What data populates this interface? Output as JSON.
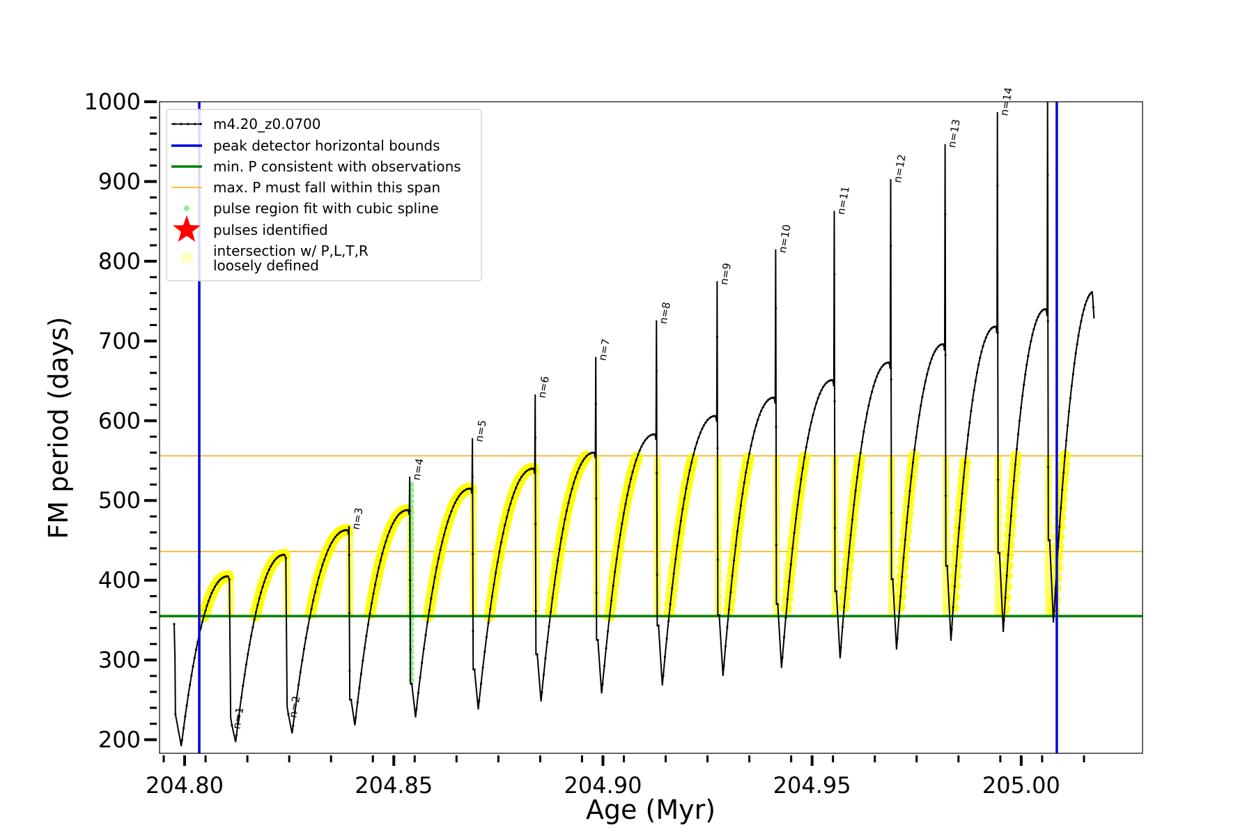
{
  "chart_data": {
    "type": "line",
    "xlabel": "Age (Myr)",
    "ylabel": "FM period (days)",
    "xlim": [
      204.794,
      205.029
    ],
    "ylim": [
      183,
      1000
    ],
    "x_ticks": [
      "204.80",
      "204.85",
      "204.90",
      "204.95",
      "205.00"
    ],
    "x_tick_values": [
      204.8,
      204.85,
      204.9,
      204.95,
      205.0
    ],
    "y_ticks": [
      "200",
      "300",
      "400",
      "500",
      "600",
      "700",
      "800",
      "900",
      "1000"
    ],
    "y_tick_values": [
      200,
      300,
      400,
      500,
      600,
      700,
      800,
      900,
      1000
    ],
    "legend": {
      "placement": "top-left",
      "entries": [
        {
          "label": "m4.20_z0.0700",
          "kind": "line-marker",
          "color": "#000000"
        },
        {
          "label": "peak detector horizontal bounds",
          "kind": "line",
          "color": "#0000dd"
        },
        {
          "label": "min. P consistent with observations",
          "kind": "line",
          "color": "#008000"
        },
        {
          "label": "max. P must fall within this span",
          "kind": "thin-line",
          "color": "#ffa500"
        },
        {
          "label": "pulse region fit with cubic spline",
          "kind": "dot",
          "color": "#90ee90"
        },
        {
          "label": "pulses identified",
          "kind": "star",
          "color": "#ff0000"
        },
        {
          "label": "intersection w/ P,L,T,R",
          "label2": "loosely defined",
          "kind": "dot",
          "color": "#ffffc0"
        }
      ]
    },
    "reference_lines": {
      "peak_bounds_x": [
        204.8035,
        205.0085
      ],
      "min_period": 355,
      "max_period_span": [
        436,
        556
      ]
    },
    "series": {
      "model_name": "m4.20_z0.0700",
      "start": {
        "age": 204.7975,
        "period": 345
      },
      "end_age": 205.018,
      "pulses": [
        {
          "n": 0,
          "age": 204.798,
          "min": 192,
          "after": 193,
          "spike": null,
          "end": 405
        },
        {
          "n": 1,
          "age": 204.811,
          "min": 197,
          "after": 218,
          "spike": null,
          "end": 432
        },
        {
          "n": 2,
          "age": 204.8245,
          "min": 208,
          "after": 232,
          "spike": null,
          "end": 463
        },
        {
          "n": 3,
          "age": 204.8395,
          "min": 218,
          "after": 250,
          "spike": 468,
          "end": 488
        },
        {
          "n": 4,
          "age": 204.854,
          "min": 228,
          "after": 270,
          "spike": 530,
          "end": 515
        },
        {
          "n": 5,
          "age": 204.869,
          "min": 238,
          "after": 288,
          "spike": 578,
          "end": 540
        },
        {
          "n": 6,
          "age": 204.884,
          "min": 248,
          "after": 307,
          "spike": 633,
          "end": 560
        },
        {
          "n": 7,
          "age": 204.8985,
          "min": 258,
          "after": 325,
          "spike": 680,
          "end": 583
        },
        {
          "n": 8,
          "age": 204.913,
          "min": 268,
          "after": 343,
          "spike": 726,
          "end": 606
        },
        {
          "n": 9,
          "age": 204.9275,
          "min": 280,
          "after": 356,
          "spike": 775,
          "end": 629
        },
        {
          "n": 10,
          "age": 204.9415,
          "min": 290,
          "after": 370,
          "spike": 815,
          "end": 651
        },
        {
          "n": 11,
          "age": 204.9555,
          "min": 302,
          "after": 386,
          "spike": 863,
          "end": 673
        },
        {
          "n": 12,
          "age": 204.969,
          "min": 313,
          "after": 401,
          "spike": 903,
          "end": 696
        },
        {
          "n": 13,
          "age": 204.982,
          "min": 324,
          "after": 418,
          "spike": 947,
          "end": 718
        },
        {
          "n": 14,
          "age": 204.9945,
          "min": 335,
          "after": 434,
          "spike": 987,
          "end": 740
        },
        {
          "n": 15,
          "age": 205.0065,
          "min": 347,
          "after": 450,
          "spike": 1000,
          "end": 762
        }
      ],
      "final_value": 728
    },
    "pulse_labels": [
      "n=1",
      "n=2",
      "n=3",
      "n=4",
      "n=5",
      "n=6",
      "n=7",
      "n=8",
      "n=9",
      "n=10",
      "n=11",
      "n=12",
      "n=13",
      "n=14"
    ]
  }
}
